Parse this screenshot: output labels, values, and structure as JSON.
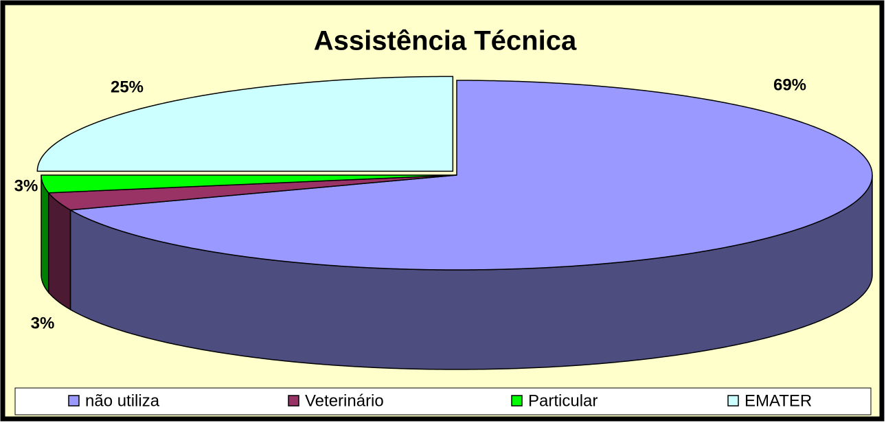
{
  "chart_data": {
    "type": "pie",
    "title": "Assistência Técnica",
    "categories": [
      "não utiliza",
      "Veterinário",
      "Particular",
      "EMATER"
    ],
    "values": [
      69,
      3,
      3,
      25
    ],
    "value_labels": [
      "69%",
      "3%",
      "3%",
      "25%"
    ],
    "colors": [
      "#9999ff",
      "#993366",
      "#00ff00",
      "#ccffff"
    ],
    "legend": "bottom"
  }
}
